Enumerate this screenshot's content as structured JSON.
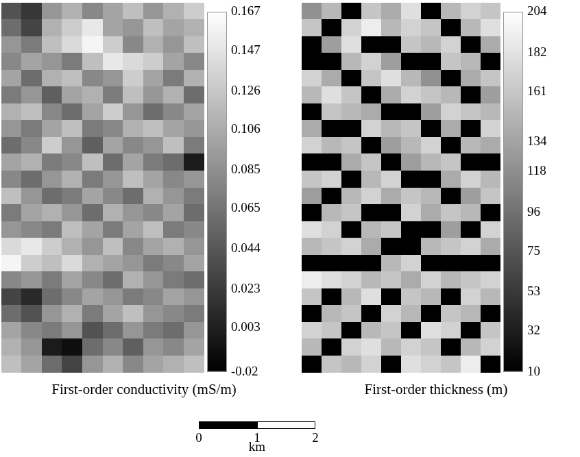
{
  "chart_data": [
    {
      "type": "heatmap",
      "tick_labels": false,
      "colorbar": {
        "label": "First-order conductivity (mS/m)",
        "range": [
          -0.02,
          0.167
        ],
        "ticks": [
          0.167,
          0.147,
          0.126,
          0.106,
          0.085,
          0.065,
          0.044,
          0.023,
          0.003,
          -0.02
        ]
      },
      "cells": [
        [
          0.04,
          0.02,
          0.09,
          0.11,
          0.08,
          0.1,
          0.12,
          0.09,
          0.11,
          0.13
        ],
        [
          0.06,
          0.03,
          0.11,
          0.13,
          0.15,
          0.1,
          0.09,
          0.12,
          0.1,
          0.11
        ],
        [
          0.09,
          0.07,
          0.12,
          0.14,
          0.16,
          0.13,
          0.08,
          0.11,
          0.09,
          0.12
        ],
        [
          0.08,
          0.1,
          0.09,
          0.07,
          0.12,
          0.15,
          0.14,
          0.13,
          0.1,
          0.08
        ],
        [
          0.1,
          0.06,
          0.11,
          0.12,
          0.08,
          0.09,
          0.13,
          0.1,
          0.07,
          0.11
        ],
        [
          0.07,
          0.09,
          0.05,
          0.1,
          0.11,
          0.07,
          0.12,
          0.09,
          0.11,
          0.06
        ],
        [
          0.11,
          0.12,
          0.08,
          0.06,
          0.1,
          0.13,
          0.09,
          0.06,
          0.08,
          0.1
        ],
        [
          0.09,
          0.07,
          0.1,
          0.12,
          0.07,
          0.08,
          0.11,
          0.12,
          0.1,
          0.09
        ],
        [
          0.06,
          0.08,
          0.13,
          0.09,
          0.05,
          0.1,
          0.08,
          0.09,
          0.12,
          0.07
        ],
        [
          0.1,
          0.11,
          0.07,
          0.08,
          0.12,
          0.06,
          0.1,
          0.07,
          0.06,
          0.0
        ],
        [
          0.08,
          0.06,
          0.09,
          0.11,
          0.07,
          0.09,
          0.12,
          0.1,
          0.08,
          0.09
        ],
        [
          0.12,
          0.09,
          0.06,
          0.07,
          0.1,
          0.08,
          0.06,
          0.11,
          0.09,
          0.07
        ],
        [
          0.07,
          0.1,
          0.11,
          0.09,
          0.06,
          0.11,
          0.09,
          0.08,
          0.1,
          0.06
        ],
        [
          0.09,
          0.08,
          0.07,
          0.12,
          0.1,
          0.07,
          0.1,
          0.12,
          0.07,
          0.08
        ],
        [
          0.14,
          0.15,
          0.13,
          0.11,
          0.09,
          0.12,
          0.08,
          0.1,
          0.11,
          0.09
        ],
        [
          0.16,
          0.13,
          0.12,
          0.14,
          0.11,
          0.1,
          0.09,
          0.07,
          0.08,
          0.1
        ],
        [
          0.08,
          0.09,
          0.07,
          0.1,
          0.08,
          0.06,
          0.11,
          0.09,
          0.07,
          0.06
        ],
        [
          0.03,
          0.01,
          0.06,
          0.08,
          0.1,
          0.09,
          0.07,
          0.08,
          0.1,
          0.09
        ],
        [
          0.06,
          0.04,
          0.09,
          0.11,
          0.07,
          0.1,
          0.12,
          0.09,
          0.08,
          0.07
        ],
        [
          0.1,
          0.08,
          0.07,
          0.09,
          0.04,
          0.06,
          0.09,
          0.07,
          0.06,
          0.09
        ],
        [
          0.11,
          0.09,
          0.0,
          -0.01,
          0.06,
          0.08,
          0.05,
          0.09,
          0.08,
          0.1
        ],
        [
          0.12,
          0.1,
          0.06,
          0.03,
          0.09,
          0.11,
          0.08,
          0.1,
          0.11,
          0.12
        ]
      ]
    },
    {
      "type": "heatmap",
      "tick_labels": false,
      "colorbar": {
        "label": "First-order thickness (m)",
        "range": [
          10,
          204
        ],
        "ticks": [
          204,
          182,
          161,
          134,
          118,
          96,
          75,
          53,
          32,
          10
        ]
      },
      "cells": [
        [
          120,
          150,
          10,
          160,
          140,
          180,
          10,
          150,
          170,
          160
        ],
        [
          160,
          10,
          170,
          190,
          150,
          170,
          160,
          10,
          150,
          180
        ],
        [
          10,
          130,
          180,
          10,
          10,
          160,
          150,
          170,
          10,
          140
        ],
        [
          10,
          10,
          150,
          170,
          130,
          10,
          10,
          160,
          150,
          10
        ],
        [
          170,
          140,
          10,
          160,
          180,
          150,
          120,
          10,
          140,
          160
        ],
        [
          150,
          180,
          160,
          10,
          140,
          170,
          160,
          150,
          10,
          130
        ],
        [
          10,
          160,
          150,
          140,
          10,
          10,
          130,
          170,
          160,
          150
        ],
        [
          140,
          10,
          10,
          170,
          150,
          160,
          10,
          140,
          10,
          170
        ],
        [
          170,
          150,
          160,
          10,
          130,
          150,
          170,
          10,
          150,
          140
        ],
        [
          10,
          10,
          140,
          160,
          10,
          130,
          150,
          160,
          10,
          10
        ],
        [
          160,
          170,
          10,
          150,
          170,
          10,
          10,
          140,
          170,
          150
        ],
        [
          130,
          10,
          150,
          170,
          140,
          160,
          150,
          10,
          130,
          160
        ],
        [
          10,
          150,
          160,
          10,
          10,
          170,
          140,
          160,
          150,
          10
        ],
        [
          180,
          170,
          10,
          150,
          160,
          10,
          10,
          130,
          10,
          170
        ],
        [
          150,
          160,
          170,
          140,
          10,
          10,
          150,
          160,
          170,
          140
        ],
        [
          10,
          10,
          10,
          10,
          150,
          170,
          10,
          10,
          10,
          10
        ],
        [
          190,
          180,
          170,
          150,
          160,
          140,
          170,
          150,
          160,
          170
        ],
        [
          160,
          10,
          150,
          180,
          10,
          160,
          150,
          10,
          170,
          150
        ],
        [
          10,
          150,
          160,
          10,
          170,
          150,
          10,
          160,
          150,
          10
        ],
        [
          170,
          160,
          10,
          150,
          160,
          10,
          180,
          170,
          10,
          160
        ],
        [
          150,
          10,
          170,
          180,
          150,
          170,
          160,
          10,
          150,
          170
        ],
        [
          10,
          160,
          150,
          170,
          10,
          180,
          170,
          160,
          190,
          10
        ]
      ]
    },
    {
      "type": "scale_bar",
      "xlim": [
        0,
        2
      ],
      "xticks": [
        0,
        1,
        2
      ],
      "xlabel": "km"
    }
  ]
}
